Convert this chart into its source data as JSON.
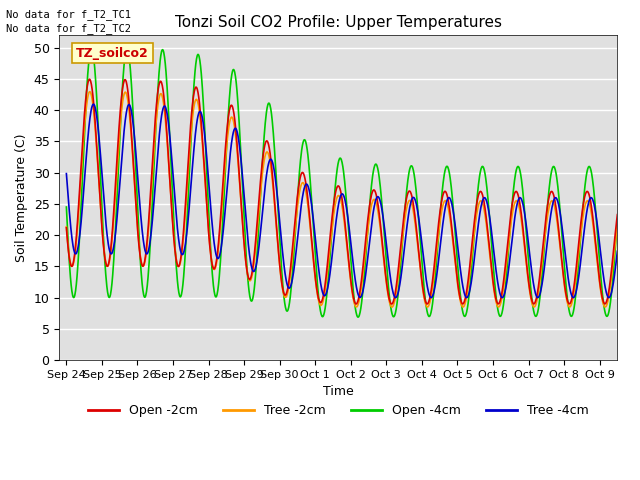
{
  "title": "Tonzi Soil CO2 Profile: Upper Temperatures",
  "ylabel": "Soil Temperature (C)",
  "xlabel": "Time",
  "ylim": [
    0,
    52
  ],
  "yticks": [
    0,
    5,
    10,
    15,
    20,
    25,
    30,
    35,
    40,
    45,
    50
  ],
  "bg_color": "#e0e0e0",
  "fig_color": "#ffffff",
  "no_data_text1": "No data for f_T2_TC1",
  "no_data_text2": "No data for f_T2_TC2",
  "inset_label": "TZ_soilco2",
  "legend_labels": [
    "Open -2cm",
    "Tree -2cm",
    "Open -4cm",
    "Tree -4cm"
  ],
  "legend_colors": [
    "#dd0000",
    "#ff9900",
    "#00cc00",
    "#0000cc"
  ],
  "xticklabels": [
    "Sep 24",
    "Sep 25",
    "Sep 26",
    "Sep 27",
    "Sep 28",
    "Sep 29",
    "Sep 30",
    "Oct 1",
    "Oct 2",
    "Oct 3",
    "Oct 4",
    "Oct 5",
    "Oct 6",
    "Oct 7",
    "Oct 8",
    "Oct 9"
  ],
  "n_points": 1500
}
